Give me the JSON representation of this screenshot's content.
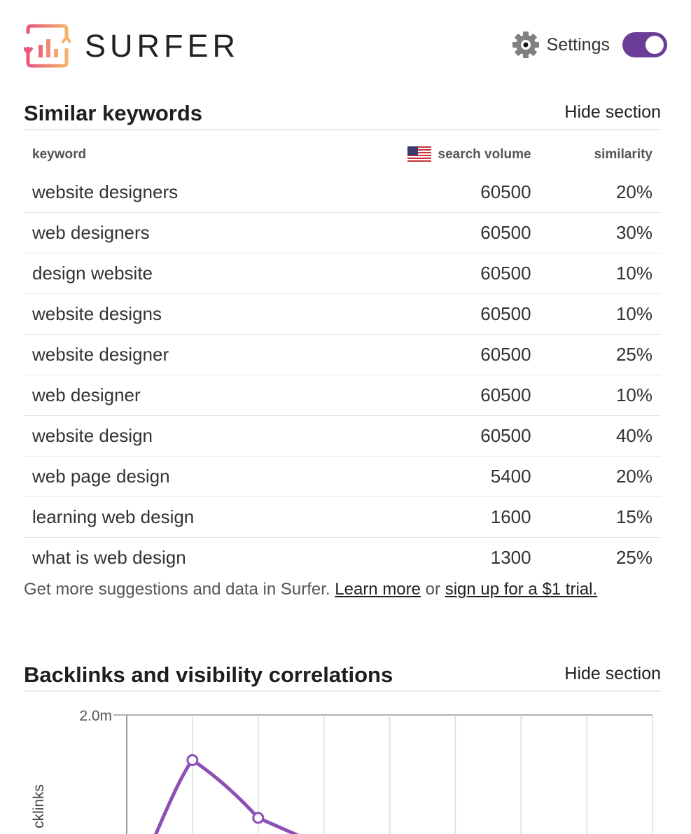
{
  "brand": {
    "name": "SURFER"
  },
  "settings": {
    "label": "Settings",
    "enabled": true
  },
  "similar": {
    "title": "Similar keywords",
    "hide_label": "Hide section",
    "columns": {
      "keyword": "keyword",
      "volume": "search volume",
      "similarity": "similarity"
    },
    "rows": [
      {
        "keyword": "website designers",
        "volume": "60500",
        "similarity": "20%"
      },
      {
        "keyword": "web designers",
        "volume": "60500",
        "similarity": "30%"
      },
      {
        "keyword": "design website",
        "volume": "60500",
        "similarity": "10%"
      },
      {
        "keyword": "website designs",
        "volume": "60500",
        "similarity": "10%"
      },
      {
        "keyword": "website designer",
        "volume": "60500",
        "similarity": "25%"
      },
      {
        "keyword": "web designer",
        "volume": "60500",
        "similarity": "10%"
      },
      {
        "keyword": "website design",
        "volume": "60500",
        "similarity": "40%"
      },
      {
        "keyword": "web page design",
        "volume": "5400",
        "similarity": "20%"
      },
      {
        "keyword": "learning web design",
        "volume": "1600",
        "similarity": "15%"
      },
      {
        "keyword": "what is web design",
        "volume": "1300",
        "similarity": "25%"
      }
    ],
    "note": {
      "text": "Get more suggestions and data in Surfer.",
      "learn_more": "Learn more",
      "or": "or",
      "signup": "sign up for a $1 trial."
    }
  },
  "backlinks": {
    "title": "Backlinks and visibility correlations",
    "hide_label": "Hide section"
  },
  "chart_data": {
    "type": "line",
    "ylabel": "cklinks",
    "y_tick_labels": [
      "2.0m"
    ],
    "ylim_top": 2000000,
    "series": [
      {
        "color": "#8e4fb5",
        "values": [
          null,
          1820000,
          1590000
        ]
      }
    ],
    "grid": true
  },
  "colors": {
    "accent": "#6c3d96",
    "line": "#8e4fb5"
  }
}
